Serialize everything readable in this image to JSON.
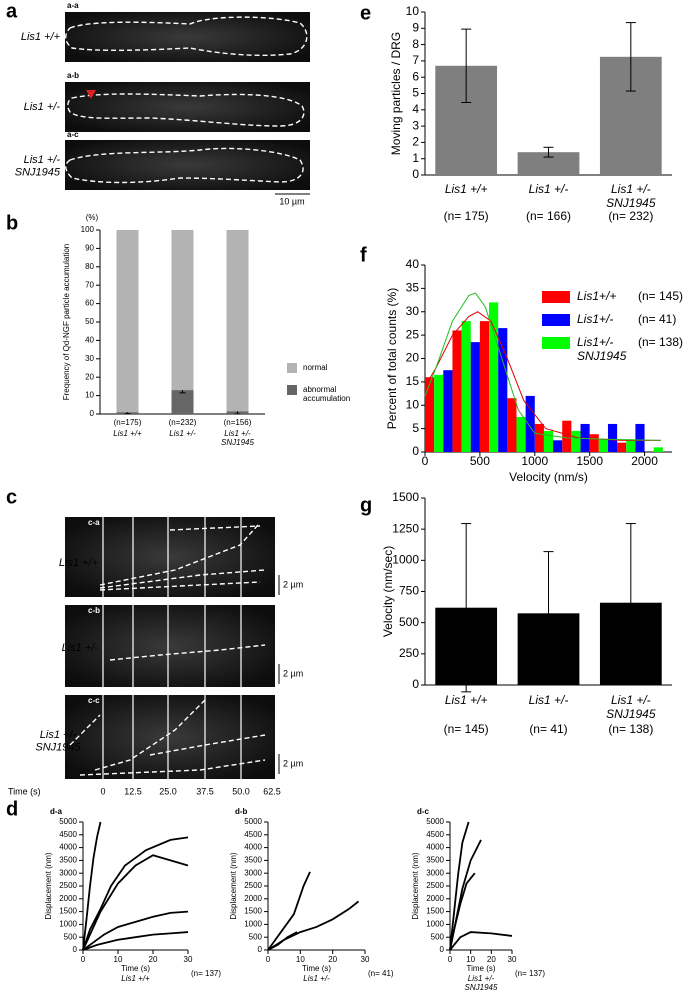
{
  "panel_labels": [
    "a",
    "b",
    "c",
    "d",
    "e",
    "f",
    "g"
  ],
  "panel_a": {
    "images": [
      {
        "tag": "a-a",
        "label": "Lis1 +/+"
      },
      {
        "tag": "a-b",
        "label": "Lis1 +/-"
      },
      {
        "tag": "a-c",
        "label": "Lis1 +/-\nSNJ1945"
      }
    ],
    "scale_bar": "10 µm"
  },
  "panel_c": {
    "kymographs": [
      {
        "tag": "c-a",
        "label": "Lis1 +/+",
        "scale": "2 µm"
      },
      {
        "tag": "c-b",
        "label": "Lis1 +/-",
        "scale": "2 µm"
      },
      {
        "tag": "c-c",
        "label": "Lis1 +/-\nSNJ1945",
        "scale": "2 µm"
      }
    ],
    "time_label": "Time (s)",
    "times": [
      "0",
      "12.5",
      "25.0",
      "37.5",
      "50.0",
      "62.5"
    ]
  },
  "chart_data": [
    {
      "type": "stacked_bar",
      "ylabel": "Frequency of Qd-NGF particle accumulation",
      "yunit": "(%)",
      "categories": [
        "Lis1 +/+",
        "Lis1 +/-",
        "Lis1 +/-\nSNJ1945"
      ],
      "n_labels": [
        "(n=175)",
        "(n=232)",
        "(n=156)"
      ],
      "series": [
        {
          "name": "abnormal\naccumulation",
          "color": "#666666",
          "values": [
            1,
            13,
            1.5
          ],
          "errors": [
            0.8,
            1.5,
            1.5
          ]
        },
        {
          "name": "normal",
          "color": "#b3b3b3",
          "values": [
            99,
            87,
            98.5
          ]
        }
      ],
      "ylim": [
        0,
        100
      ],
      "yticks": [
        0,
        10,
        20,
        30,
        40,
        50,
        60,
        70,
        80,
        90,
        100
      ]
    },
    {
      "type": "line",
      "title": "d-a",
      "xlabel": "Time (s)",
      "ylabel": "Displacement (nm)",
      "group": "Lis1 +/+",
      "n_label": "(n= 137)",
      "xlim": [
        0,
        30
      ],
      "xticks": [
        0,
        10,
        20,
        30
      ],
      "ylim": [
        0,
        5000
      ],
      "yticks": [
        0,
        500,
        1000,
        1500,
        2000,
        2500,
        3000,
        3500,
        4000,
        4500,
        5000
      ],
      "series": [
        {
          "color": "#000000",
          "x": [
            0,
            2,
            5,
            8,
            12,
            18,
            25,
            30
          ],
          "values": [
            0,
            800,
            1600,
            2500,
            3300,
            3900,
            4300,
            4400
          ]
        },
        {
          "color": "#000000",
          "x": [
            0,
            3,
            6,
            10,
            15,
            20,
            25,
            30
          ],
          "values": [
            0,
            300,
            600,
            900,
            1100,
            1300,
            1450,
            1500
          ]
        },
        {
          "color": "#000000",
          "x": [
            0,
            4,
            10,
            15,
            20,
            25,
            30
          ],
          "values": [
            0,
            200,
            400,
            500,
            600,
            650,
            700
          ]
        },
        {
          "color": "#000000",
          "x": [
            0,
            1,
            2,
            3,
            4,
            5
          ],
          "values": [
            0,
            1200,
            2500,
            3600,
            4400,
            5000
          ]
        },
        {
          "color": "#000000",
          "x": [
            0,
            5,
            10,
            15,
            20,
            25,
            30
          ],
          "values": [
            0,
            1500,
            2600,
            3300,
            3700,
            3500,
            3300
          ]
        }
      ]
    },
    {
      "type": "line",
      "title": "d-b",
      "xlabel": "Time (s)",
      "ylabel": "Displacement (nm)",
      "group": "Lis1 +/-",
      "n_label": "(n= 41)",
      "xlim": [
        0,
        30
      ],
      "xticks": [
        0,
        10,
        20,
        30
      ],
      "ylim": [
        0,
        5000
      ],
      "yticks": [
        0,
        500,
        1000,
        1500,
        2000,
        2500,
        3000,
        3500,
        4000,
        4500,
        5000
      ],
      "series": [
        {
          "color": "#000000",
          "x": [
            0,
            4,
            8,
            11,
            13
          ],
          "values": [
            0,
            700,
            1400,
            2500,
            3050
          ]
        },
        {
          "color": "#000000",
          "x": [
            0,
            5,
            10,
            15,
            20,
            25,
            28
          ],
          "values": [
            0,
            400,
            700,
            900,
            1200,
            1600,
            1900
          ]
        },
        {
          "color": "#000000",
          "x": [
            0,
            3,
            6,
            9
          ],
          "values": [
            0,
            200,
            500,
            700
          ]
        }
      ]
    },
    {
      "type": "line",
      "title": "d-c",
      "xlabel": "Time (s)",
      "ylabel": "Displacement (nm)",
      "group": "Lis1 +/-\nSNJ1945",
      "n_label": "(n= 137)",
      "xlim": [
        0,
        30
      ],
      "xticks": [
        0,
        10,
        20,
        30
      ],
      "ylim": [
        0,
        5000
      ],
      "yticks": [
        0,
        500,
        1000,
        1500,
        2000,
        2500,
        3000,
        3500,
        4000,
        4500,
        5000
      ],
      "series": [
        {
          "color": "#000000",
          "x": [
            0,
            2,
            4,
            6,
            9
          ],
          "values": [
            0,
            1500,
            3000,
            4200,
            5000
          ]
        },
        {
          "color": "#000000",
          "x": [
            0,
            3,
            6,
            10,
            15
          ],
          "values": [
            0,
            1200,
            2400,
            3500,
            4300
          ]
        },
        {
          "color": "#000000",
          "x": [
            0,
            5,
            10,
            20,
            30
          ],
          "values": [
            0,
            500,
            700,
            650,
            550
          ]
        },
        {
          "color": "#000000",
          "x": [
            0,
            2,
            5,
            8,
            12
          ],
          "values": [
            0,
            800,
            1800,
            2600,
            3000
          ]
        }
      ]
    },
    {
      "type": "bar",
      "ylabel": "Moving particles / DRG",
      "categories": [
        "Lis1 +/+",
        "Lis1 +/-",
        "Lis1 +/-\nSNJ1945"
      ],
      "n_labels": [
        "(n= 175)",
        "(n= 166)",
        "(n= 232)"
      ],
      "values": [
        6.7,
        1.4,
        7.25
      ],
      "errors": [
        2.25,
        0.3,
        2.1
      ],
      "color": "#7f7f7f",
      "ylim": [
        0,
        10
      ],
      "yticks": [
        0,
        1,
        2,
        3,
        4,
        5,
        6,
        7,
        8,
        9,
        10
      ]
    },
    {
      "type": "histogram",
      "xlabel": "Velocity (nm/s)",
      "ylabel": "Percent of total counts (%)",
      "bins": [
        0,
        250,
        500,
        750,
        1000,
        1250,
        1500,
        1750,
        2000,
        2250
      ],
      "series": [
        {
          "name": "Lis1+/+",
          "n": "(n= 145)",
          "color": "#ff0000",
          "values": [
            16,
            26,
            28,
            11.5,
            6,
            6.7,
            3.8,
            2,
            0
          ]
        },
        {
          "name": "Lis1+/-\nSNJ1945",
          "n": "(n= 138)",
          "color": "#00ff00",
          "values": [
            16.5,
            28,
            32,
            7.5,
            4.5,
            4.5,
            2.7,
            2.7,
            1
          ]
        },
        {
          "name": "Lis1+/-",
          "n": "(n= 41)",
          "color": "#0000ff",
          "values": [
            17.5,
            23.5,
            26.5,
            12,
            2.5,
            6,
            6,
            6,
            0
          ]
        }
      ],
      "legend_order": [
        0,
        2,
        1
      ],
      "fits": [
        {
          "color": "#dd0000",
          "x": [
            0,
            100,
            250,
            400,
            480,
            600,
            750,
            900,
            1100,
            1400,
            1800,
            2150
          ],
          "values": [
            14,
            18,
            25,
            29,
            30,
            28,
            20,
            11,
            5,
            3,
            2.5,
            2.5
          ]
        },
        {
          "color": "#22bb22",
          "x": [
            0,
            100,
            250,
            400,
            460,
            550,
            700,
            850,
            1000,
            1300,
            1700,
            2150
          ],
          "values": [
            12,
            18,
            28,
            33.5,
            34,
            31,
            20,
            9,
            4,
            3,
            2.7,
            2.5
          ]
        }
      ],
      "xlim": [
        0,
        2250
      ],
      "xticks": [
        0,
        500,
        1000,
        1500,
        2000
      ],
      "ylim": [
        0,
        40
      ],
      "yticks": [
        0,
        5,
        10,
        15,
        20,
        25,
        30,
        35,
        40
      ]
    },
    {
      "type": "bar",
      "ylabel": "Velocity (nm/sec)",
      "categories": [
        "Lis1 +/+",
        "Lis1 +/-",
        "Lis1 +/-\nSNJ1945"
      ],
      "n_labels": [
        "(n= 145)",
        "(n= 41)",
        "(n= 138)"
      ],
      "values": [
        620,
        575,
        660
      ],
      "errors": [
        675,
        495,
        635
      ],
      "color": "#000000",
      "ylim": [
        0,
        1500
      ],
      "yticks": [
        0,
        250,
        500,
        750,
        1000,
        1250,
        1500
      ]
    }
  ]
}
